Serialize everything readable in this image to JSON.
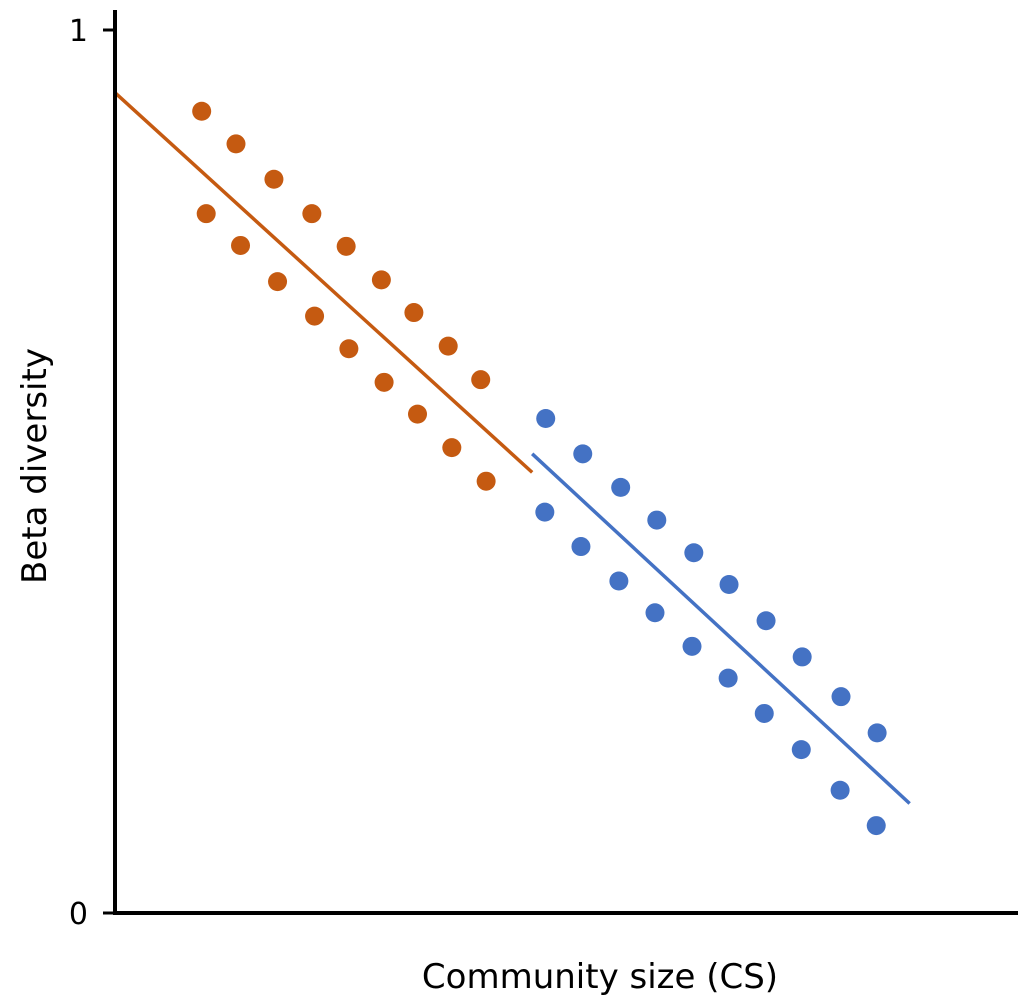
{
  "chart_data": {
    "type": "scatter",
    "xlabel": "Community size (CS)",
    "ylabel": "Beta diversity",
    "xlim": [
      0,
      100
    ],
    "ylim": [
      0,
      1
    ],
    "x_ticks_shown": false,
    "grid": false,
    "legend": "none",
    "y_ticks": [
      {
        "value": 0,
        "label": "0"
      },
      {
        "value": 1,
        "label": "1"
      }
    ],
    "series": [
      {
        "color": "#C55A11",
        "points": [
          {
            "x": 9.6,
            "y": 0.908
          },
          {
            "x": 13.4,
            "y": 0.871
          },
          {
            "x": 17.6,
            "y": 0.831
          },
          {
            "x": 21.8,
            "y": 0.792
          },
          {
            "x": 25.6,
            "y": 0.755
          },
          {
            "x": 29.5,
            "y": 0.717
          },
          {
            "x": 33.1,
            "y": 0.68
          },
          {
            "x": 36.9,
            "y": 0.642
          },
          {
            "x": 40.5,
            "y": 0.604
          },
          {
            "x": 10.1,
            "y": 0.792
          },
          {
            "x": 13.9,
            "y": 0.756
          },
          {
            "x": 18.0,
            "y": 0.715
          },
          {
            "x": 22.1,
            "y": 0.676
          },
          {
            "x": 25.9,
            "y": 0.639
          },
          {
            "x": 29.8,
            "y": 0.601
          },
          {
            "x": 33.5,
            "y": 0.565
          },
          {
            "x": 37.3,
            "y": 0.527
          },
          {
            "x": 41.1,
            "y": 0.489
          }
        ],
        "trendline": {
          "x": [
            0,
            46.2
          ],
          "y": [
            0.929,
            0.499
          ]
        }
      },
      {
        "color": "#4472C4",
        "points": [
          {
            "x": 47.7,
            "y": 0.56
          },
          {
            "x": 51.8,
            "y": 0.52
          },
          {
            "x": 56.0,
            "y": 0.482
          },
          {
            "x": 60.0,
            "y": 0.445
          },
          {
            "x": 64.1,
            "y": 0.408
          },
          {
            "x": 68.0,
            "y": 0.372
          },
          {
            "x": 72.1,
            "y": 0.331
          },
          {
            "x": 76.1,
            "y": 0.29
          },
          {
            "x": 80.4,
            "y": 0.245
          },
          {
            "x": 84.4,
            "y": 0.204
          },
          {
            "x": 47.6,
            "y": 0.454
          },
          {
            "x": 51.6,
            "y": 0.415
          },
          {
            "x": 55.8,
            "y": 0.376
          },
          {
            "x": 59.8,
            "y": 0.34
          },
          {
            "x": 63.9,
            "y": 0.302
          },
          {
            "x": 67.9,
            "y": 0.266
          },
          {
            "x": 71.9,
            "y": 0.226
          },
          {
            "x": 76.0,
            "y": 0.185
          },
          {
            "x": 80.3,
            "y": 0.139
          },
          {
            "x": 84.3,
            "y": 0.099
          }
        ],
        "trendline": {
          "x": [
            46.2,
            88.0
          ],
          "y": [
            0.52,
            0.124
          ]
        }
      }
    ]
  }
}
